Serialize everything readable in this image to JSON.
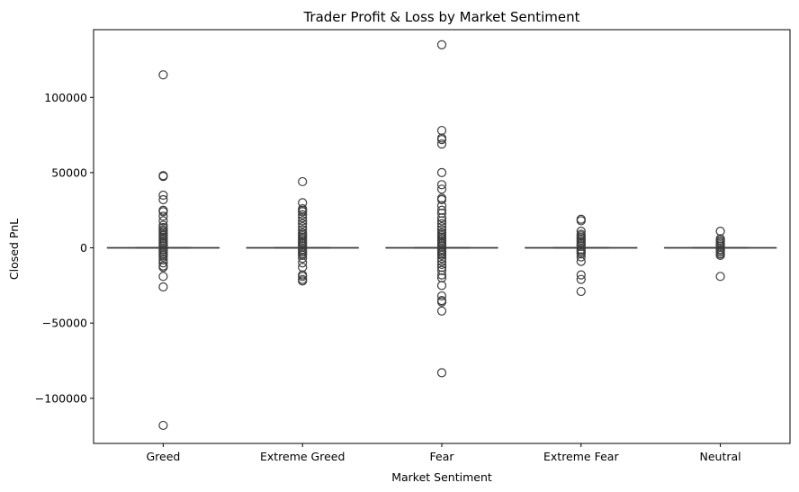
{
  "chart_data": {
    "type": "box",
    "title": "Trader Profit & Loss by Market Sentiment",
    "xlabel": "Market Sentiment",
    "ylabel": "Closed PnL",
    "categories": [
      "Greed",
      "Extreme Greed",
      "Fear",
      "Extreme Fear",
      "Neutral"
    ],
    "ylim": [
      -130000,
      145000
    ],
    "yticks": [
      -100000,
      -50000,
      0,
      50000,
      100000
    ],
    "ytick_labels": [
      "−100000",
      "−50000",
      "0",
      "50000",
      "100000"
    ],
    "grid": false,
    "colors": {
      "box": "#3a78b0",
      "line": "#3c3c3c",
      "axis": "#000000"
    },
    "boxes": [
      {
        "category": "Greed",
        "q1": 0,
        "median": 0,
        "q3": 0,
        "whisker_low": 0,
        "whisker_high": 0,
        "outliers": [
          115000,
          48000,
          47500,
          35000,
          32000,
          25000,
          24000,
          21000,
          18000,
          15000,
          13500,
          12000,
          11000,
          10000,
          9000,
          8000,
          7000,
          6000,
          5000,
          4000,
          3000,
          2000,
          1000,
          -1000,
          -2000,
          -3000,
          -4000,
          -5000,
          -6000,
          -8000,
          -10000,
          -12000,
          -13000,
          -19000,
          -26000,
          -118000
        ]
      },
      {
        "category": "Extreme Greed",
        "q1": 0,
        "median": 0,
        "q3": 0,
        "whisker_low": 0,
        "whisker_high": 0,
        "outliers": [
          44000,
          30000,
          26000,
          25000,
          24000,
          22000,
          20000,
          18000,
          16000,
          14000,
          12000,
          10000,
          9000,
          8000,
          7000,
          6000,
          5000,
          4000,
          3000,
          2000,
          1000,
          -1000,
          -2000,
          -3000,
          -4000,
          -5000,
          -7000,
          -10000,
          -13000,
          -18000,
          -19000,
          -21000,
          -22000
        ]
      },
      {
        "category": "Fear",
        "q1": 0,
        "median": 0,
        "q3": 0,
        "whisker_low": 0,
        "whisker_high": 0,
        "outliers": [
          135000,
          78000,
          73000,
          72000,
          69000,
          50000,
          42000,
          39000,
          33000,
          32000,
          28000,
          25000,
          23000,
          20000,
          18000,
          16000,
          14000,
          12000,
          10000,
          9000,
          8000,
          7000,
          6000,
          5000,
          4000,
          3000,
          2000,
          1000,
          -1000,
          -2000,
          -3000,
          -4000,
          -5000,
          -7000,
          -9000,
          -11000,
          -13000,
          -15000,
          -18000,
          -20000,
          -25000,
          -32000,
          -35000,
          -36000,
          -42000,
          -83000
        ]
      },
      {
        "category": "Extreme Fear",
        "q1": 0,
        "median": 0,
        "q3": 0,
        "whisker_low": 0,
        "whisker_high": 0,
        "outliers": [
          19000,
          18000,
          11000,
          9000,
          8000,
          7000,
          6000,
          5000,
          4000,
          3000,
          2000,
          1000,
          -1000,
          -2000,
          -3000,
          -4000,
          -6000,
          -9000,
          -18000,
          -21000,
          -29000
        ]
      },
      {
        "category": "Neutral",
        "q1": 0,
        "median": 0,
        "q3": 0,
        "whisker_low": 0,
        "whisker_high": 0,
        "outliers": [
          11000,
          6000,
          5000,
          4000,
          3000,
          2000,
          1000,
          -1000,
          -2000,
          -3000,
          -4000,
          -5000,
          -19000
        ]
      }
    ]
  }
}
